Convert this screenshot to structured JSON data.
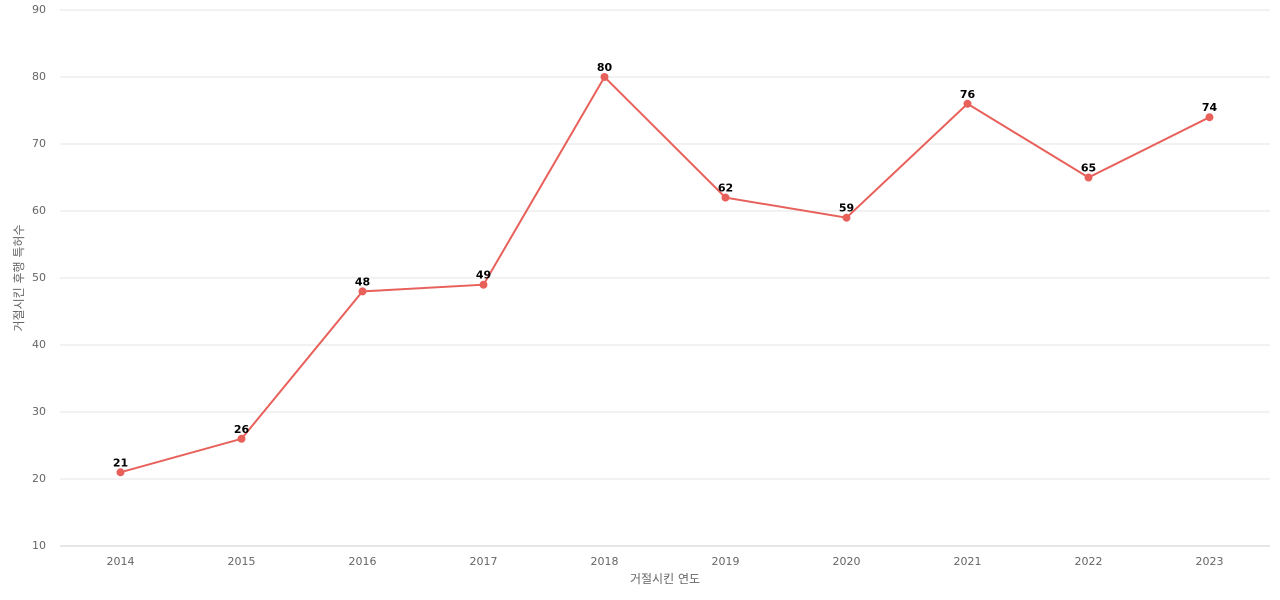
{
  "chart_data": {
    "type": "line",
    "title": "",
    "xlabel": "거절시킨 연도",
    "ylabel": "거절시킨 후행 특허수",
    "categories": [
      "2014",
      "2015",
      "2016",
      "2017",
      "2018",
      "2019",
      "2020",
      "2021",
      "2022",
      "2023"
    ],
    "series": [
      {
        "values": [
          21,
          26,
          48,
          49,
          80,
          62,
          59,
          76,
          65,
          74
        ]
      }
    ],
    "ylim": [
      10,
      90
    ],
    "yticks": [
      10,
      20,
      30,
      40,
      50,
      60,
      70,
      80,
      90
    ],
    "grid": true,
    "legend": "none",
    "line_color": "#e8605a"
  }
}
